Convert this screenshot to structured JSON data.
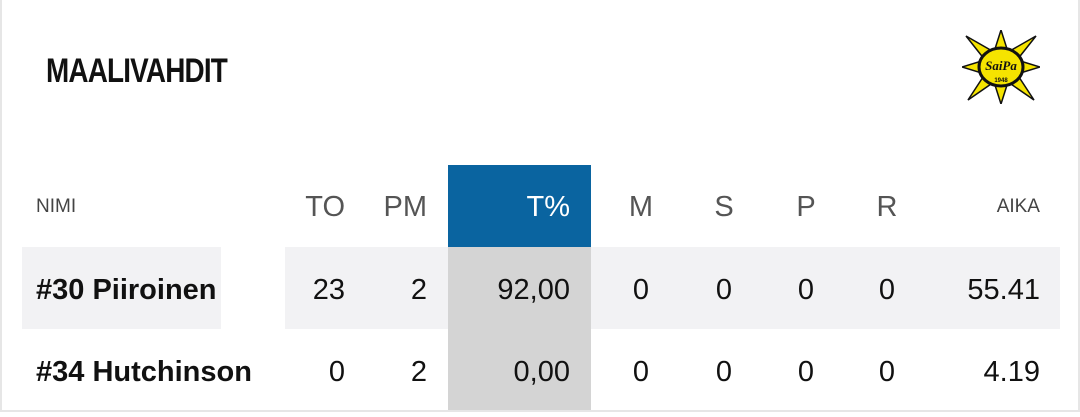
{
  "header": {
    "title": "MAALIVAHDIT",
    "logo": {
      "name": "SaiPa",
      "year": "1948"
    }
  },
  "table": {
    "columns": [
      "NIMI",
      "TO",
      "PM",
      "T%",
      "M",
      "S",
      "P",
      "R",
      "AIKA"
    ],
    "rows": [
      [
        "#30 Piiroinen",
        "23",
        "2",
        "92,00",
        "0",
        "0",
        "0",
        "0",
        "55.41"
      ],
      [
        "#34 Hutchinson",
        "0",
        "2",
        "0,00",
        "0",
        "0",
        "0",
        "0",
        "4.19"
      ]
    ]
  }
}
